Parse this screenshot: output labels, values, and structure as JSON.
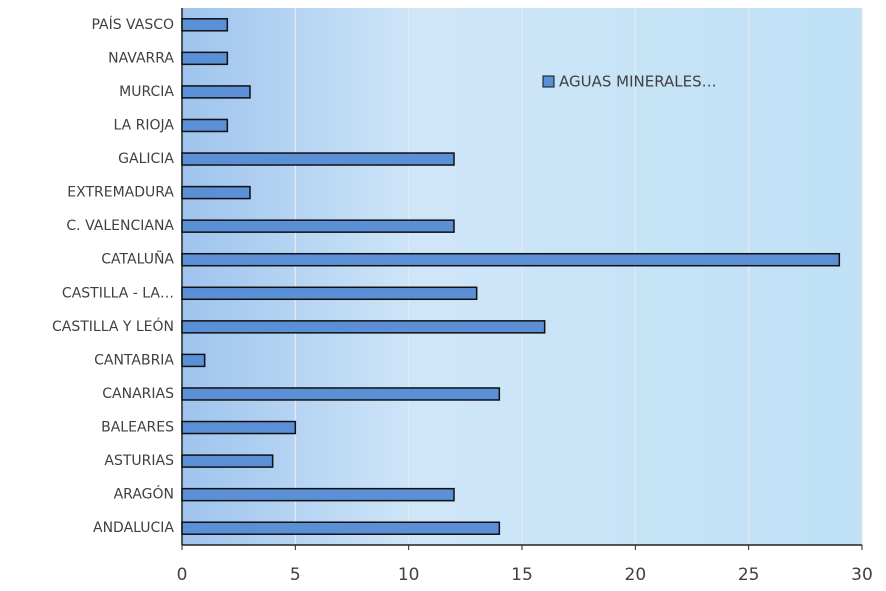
{
  "chart_data": {
    "type": "hbar",
    "categories": [
      "ANDALUCIA",
      "ARAGÓN",
      "ASTURIAS",
      "BALEARES",
      "CANARIAS",
      "CANTABRIA",
      "CASTILLA Y LEÓN",
      "CASTILLA - LA…",
      "CATALUÑA",
      "C. VALENCIANA",
      "EXTREMADURA",
      "GALICIA",
      "LA RIOJA",
      "MURCIA",
      "NAVARRA",
      "PAÍS VASCO"
    ],
    "series": [
      {
        "name": "AGUAS MINERALES…",
        "color": "#5b8fd6",
        "values": [
          14,
          12,
          4,
          5,
          14,
          1,
          16,
          13,
          29,
          12,
          3,
          12,
          2,
          3,
          2,
          2
        ]
      }
    ],
    "xlim": [
      0,
      30
    ],
    "xticks": [
      0,
      5,
      10,
      15,
      20,
      25,
      30
    ],
    "grid": true,
    "legend": "top-right"
  }
}
